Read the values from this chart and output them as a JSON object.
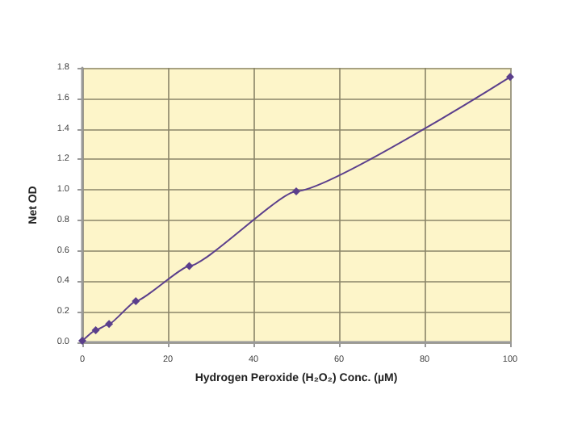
{
  "chart_data": {
    "type": "line",
    "xlabel": "Hydrogen Peroxide (H₂O₂) Conc. (µM)",
    "ylabel": "Net OD",
    "x": [
      0,
      3.125,
      6.25,
      12.5,
      25,
      50,
      100
    ],
    "series": [
      {
        "color": "#5b3f8c",
        "values": [
          0.01,
          0.08,
          0.12,
          0.27,
          0.5,
          0.99,
          1.74
        ]
      }
    ],
    "xlim": [
      0,
      100
    ],
    "xticks": [
      0,
      20,
      40,
      60,
      80,
      100
    ],
    "ylim": [
      0,
      1.8
    ],
    "yticks": [
      {
        "value": 0,
        "label": "0.0"
      },
      {
        "value": 0.2,
        "label": "0.2"
      },
      {
        "value": 0.4,
        "label": "0.4"
      },
      {
        "value": 0.6,
        "label": "0.6"
      },
      {
        "value": 0.8,
        "label": "0.8"
      },
      {
        "value": 1,
        "label": "1.0"
      },
      {
        "value": 1.2,
        "label": "1.2"
      },
      {
        "value": 1.4,
        "label": "1.4"
      },
      {
        "value": 1.6,
        "label": "1.6"
      },
      {
        "value": 1.8,
        "label": "1.8"
      }
    ],
    "grid": true,
    "marker": "diamond",
    "line_style": "solid"
  }
}
